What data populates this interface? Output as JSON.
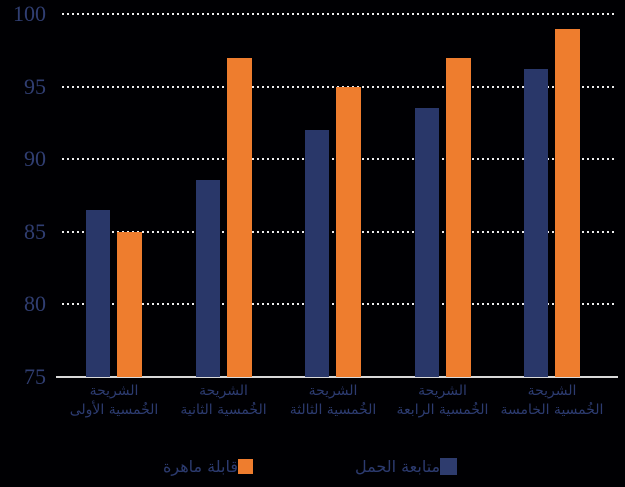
{
  "chart_data": {
    "type": "bar",
    "title": "",
    "xlabel": "",
    "ylabel": "",
    "ylim": [
      75,
      100
    ],
    "yticks": [
      75,
      80,
      85,
      90,
      95,
      100
    ],
    "grid": "horizontal-dotted-white, solid baseline at 75",
    "legend_position": "bottom",
    "direction": "rtl",
    "background": "#000003",
    "categories": [
      {
        "line1": "الشريحة",
        "line2": "الخُمسية الأولى"
      },
      {
        "line1": "الشريحة",
        "line2": "الخُمسية الثانية"
      },
      {
        "line1": "الشريحة",
        "line2": "الخُمسية الثالثة"
      },
      {
        "line1": "الشريحة",
        "line2": "الخُمسية الرابعة"
      },
      {
        "line1": "الشريحة",
        "line2": "الخُمسية الخامسة"
      }
    ],
    "series": [
      {
        "name": "متابعة الحمل",
        "color": "#293769",
        "values": [
          86.5,
          88.6,
          92.0,
          93.5,
          96.2
        ]
      },
      {
        "name": "قابلة ماهرة",
        "color": "#EE7D2E",
        "values": [
          85.0,
          97.0,
          95.0,
          97.0,
          99.0
        ]
      }
    ],
    "colors": {
      "axis_text": "#303E72",
      "gridline": "#ECECEC",
      "baseline": "#D9D9D9",
      "bar_blue": "#293769",
      "bar_orange": "#EE7D2E"
    }
  },
  "legend": {
    "skilled_label": "قابلة ماهرة",
    "anc_label": "متابعة الحمل"
  }
}
